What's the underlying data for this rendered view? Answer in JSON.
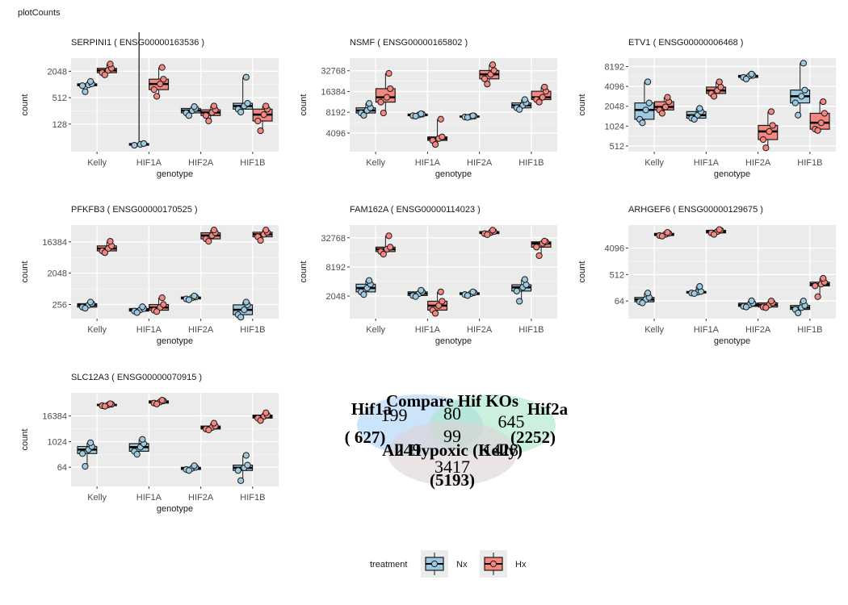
{
  "page_title": "plotCounts",
  "colors": {
    "Nx": "#9ecae1",
    "Hx": "#f4877f",
    "panel_bg": "#ebebeb"
  },
  "chart_data": [
    {
      "type": "box",
      "title": "SERPINI1 ( ENSG00000163536 )",
      "xlabel": "genotype",
      "ylabel": "count",
      "yscale": "log2",
      "ylim": [
        30,
        4096
      ],
      "yticks": [
        128,
        512,
        2048
      ],
      "categories": [
        "Kelly",
        "HIF1A",
        "HIF2A",
        "HIF1B"
      ],
      "series": [
        {
          "name": "Nx",
          "values": [
            [
              960,
              1000,
              1060,
              700,
              1200
            ],
            [
              42,
              44,
              46
            ],
            [
              230,
              260,
              290,
              200,
              320
            ],
            [
              280,
              330,
              380,
              240,
              1500
            ]
          ]
        },
        {
          "name": "Hx",
          "values": [
            [
              1900,
              2150,
              2400,
              1700,
              3000
            ],
            [
              780,
              1050,
              1350,
              550,
              2500
            ],
            [
              200,
              235,
              270,
              150,
              330
            ],
            [
              150,
              210,
              280,
              90,
              330
            ]
          ]
        }
      ]
    },
    {
      "type": "box",
      "title": "NSMF ( ENSG00000165802 )",
      "xlabel": "genotype",
      "ylabel": "count",
      "yscale": "log2",
      "ylim": [
        2200,
        50000
      ],
      "yticks": [
        4096,
        8192,
        16384,
        32768
      ],
      "categories": [
        "Kelly",
        "HIF1A",
        "HIF2A",
        "HIF1B"
      ],
      "series": [
        {
          "name": "Nx",
          "values": [
            [
              8000,
              8700,
              9500,
              7400,
              11000
            ],
            [
              7300,
              7500,
              7700,
              7200,
              7800
            ],
            [
              7000,
              7100,
              7200,
              6900,
              7300
            ],
            [
              9500,
              10300,
              11200,
              9000,
              12500
            ]
          ]
        },
        {
          "name": "Hx",
          "values": [
            [
              11500,
              13500,
              18000,
              8000,
              30000
            ],
            [
              3200,
              3400,
              3600,
              2800,
              6500
            ],
            [
              25000,
              29000,
              33000,
              21000,
              40000
            ],
            [
              12500,
              13500,
              16500,
              11500,
              19000
            ]
          ]
        }
      ]
    },
    {
      "type": "box",
      "title": "ETV1 ( ENSG00000006468 )",
      "xlabel": "genotype",
      "ylabel": "count",
      "yscale": "log2",
      "ylim": [
        420,
        11000
      ],
      "yticks": [
        512,
        1024,
        2048,
        4096,
        8192
      ],
      "categories": [
        "Kelly",
        "HIF1A",
        "HIF2A",
        "HIF1B"
      ],
      "series": [
        {
          "name": "Nx",
          "values": [
            [
              1300,
              1800,
              2300,
              1150,
              4800
            ],
            [
              1350,
              1500,
              1700,
              1300,
              1900
            ],
            [
              5600,
              5900,
              6000,
              5300,
              6300
            ],
            [
              2300,
              2900,
              3600,
              1500,
              9200
            ]
          ]
        },
        {
          "name": "Hx",
          "values": [
            [
              1800,
              2000,
              2400,
              1600,
              2800
            ],
            [
              3200,
              3550,
              4000,
              2900,
              4800
            ],
            [
              640,
              850,
              1050,
              480,
              1700
            ],
            [
              920,
              1150,
              1600,
              880,
              2400
            ]
          ]
        }
      ]
    },
    {
      "type": "box",
      "title": "PFKFB3 ( ENSG00000170525 )",
      "xlabel": "genotype",
      "ylabel": "count",
      "yscale": "log2",
      "ylim": [
        100,
        50000
      ],
      "yticks": [
        256,
        2048,
        16384
      ],
      "categories": [
        "Kelly",
        "HIF1A",
        "HIF2A",
        "HIF1B"
      ],
      "series": [
        {
          "name": "Nx",
          "values": [
            [
              215,
              245,
              270,
              200,
              300
            ],
            [
              165,
              180,
              195,
              150,
              220
            ],
            [
              370,
              400,
              420,
              350,
              450
            ],
            [
              130,
              180,
              250,
              110,
              300
            ]
          ]
        },
        {
          "name": "Hx",
          "values": [
            [
              9000,
              10500,
              12500,
              8000,
              17000
            ],
            [
              175,
              210,
              255,
              160,
              400
            ],
            [
              20000,
              25000,
              30000,
              17000,
              36000
            ],
            [
              23000,
              27000,
              31000,
              18000,
              36000
            ]
          ]
        }
      ]
    },
    {
      "type": "box",
      "title": "FAM162A ( ENSG00000114023 )",
      "xlabel": "genotype",
      "ylabel": "count",
      "yscale": "log2",
      "ylim": [
        700,
        60000
      ],
      "yticks": [
        2048,
        8192,
        32768
      ],
      "categories": [
        "Kelly",
        "HIF1A",
        "HIF2A",
        "HIF1B"
      ],
      "series": [
        {
          "name": "Nx",
          "values": [
            [
              2500,
              3000,
              3600,
              2200,
              4300
            ],
            [
              2100,
              2300,
              2500,
              2000,
              2700
            ],
            [
              2200,
              2300,
              2400,
              2100,
              2500
            ],
            [
              2600,
              3100,
              3500,
              1600,
              4500
            ]
          ]
        },
        {
          "name": "Hx",
          "values": [
            [
              17000,
              19000,
              21000,
              15000,
              36000
            ],
            [
              1050,
              1300,
              1600,
              900,
              2500
            ],
            [
              40000,
              42000,
              44000,
              38000,
              47000
            ],
            [
              21000,
              25000,
              27000,
              14000,
              28000
            ]
          ]
        }
      ]
    },
    {
      "type": "box",
      "title": "ARHGEF6 ( ENSG00000129675 )",
      "xlabel": "genotype",
      "ylabel": "count",
      "yscale": "log2",
      "ylim": [
        16,
        25000
      ],
      "yticks": [
        64,
        512,
        4096
      ],
      "categories": [
        "Kelly",
        "HIF1A",
        "HIF2A",
        "HIF1B"
      ],
      "series": [
        {
          "name": "Nx",
          "values": [
            [
              60,
              72,
              85,
              55,
              120
            ],
            [
              120,
              128,
              135,
              115,
              200
            ],
            [
              42,
              47,
              54,
              40,
              65
            ],
            [
              33,
              38,
              45,
              25,
              64
            ]
          ]
        },
        {
          "name": "Hx",
          "values": [
            [
              11000,
              12000,
              13000,
              10500,
              14000
            ],
            [
              13500,
              15000,
              16500,
              12000,
              17500
            ],
            [
              40,
              47,
              55,
              38,
              64
            ],
            [
              210,
              240,
              280,
              90,
              380
            ]
          ]
        }
      ]
    },
    {
      "type": "box",
      "title": "SLC12A3 ( ENSG00000070915 )",
      "xlabel": "genotype",
      "ylabel": "count",
      "yscale": "log2",
      "ylim": [
        8,
        200000
      ],
      "yticks": [
        64,
        1024,
        16384
      ],
      "categories": [
        "Kelly",
        "HIF1A",
        "HIF2A",
        "HIF1B"
      ],
      "series": [
        {
          "name": "Nx",
          "values": [
            [
              280,
              430,
              600,
              70,
              900
            ],
            [
              360,
              560,
              820,
              260,
              1300
            ],
            [
              50,
              57,
              63,
              45,
              75
            ],
            [
              45,
              60,
              80,
              15,
              230
            ]
          ]
        },
        {
          "name": "Hx",
          "values": [
            [
              50000,
              54000,
              58000,
              47000,
              62000
            ],
            [
              66000,
              75000,
              84000,
              60000,
              90000
            ],
            [
              4000,
              4700,
              5500,
              3600,
              7500
            ],
            [
              13000,
              15500,
              18000,
              10000,
              23000
            ]
          ]
        }
      ]
    },
    {
      "type": "venn",
      "title": "Compare Hif KOs",
      "sets": [
        {
          "name": "Hif1a",
          "total": "( 627)",
          "color": "#a9d2f5"
        },
        {
          "name": "Hif2a",
          "total": "(2252)",
          "color": "#a8e6c8"
        },
        {
          "name": "All Hypoxic (Kelly)",
          "total": "(5193)",
          "color": "#ddd2d6"
        }
      ],
      "counts": [
        "199",
        "80",
        "645",
        "249",
        "99",
        "1428",
        "3417"
      ]
    }
  ],
  "legend": {
    "title": "treatment",
    "items": [
      "Nx",
      "Hx"
    ]
  }
}
